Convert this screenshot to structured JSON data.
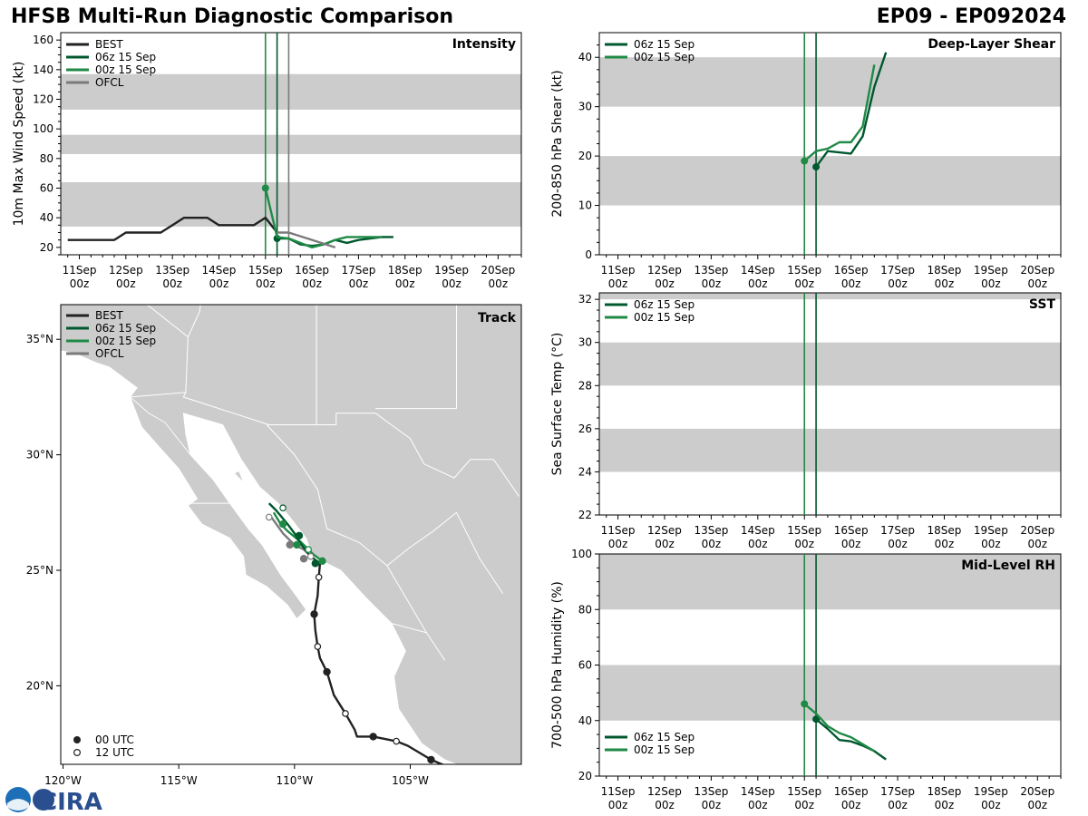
{
  "header": {
    "title": "HFSB Multi-Run Diagnostic Comparison",
    "storm_id": "EP09 - EP092024"
  },
  "logo": {
    "text": "CIRA"
  },
  "colors": {
    "best": "#222222",
    "run06": "#00582f",
    "run00": "#1f8a45",
    "ofcl": "#7a7a7a",
    "band": "#cccccc",
    "land": "#cccccc",
    "water": "#ffffff"
  },
  "time_axis": {
    "ticks": [
      {
        "day": "11Sep",
        "hour": "00z"
      },
      {
        "day": "12Sep",
        "hour": "00z"
      },
      {
        "day": "13Sep",
        "hour": "00z"
      },
      {
        "day": "14Sep",
        "hour": "00z"
      },
      {
        "day": "15Sep",
        "hour": "00z"
      },
      {
        "day": "16Sep",
        "hour": "00z"
      },
      {
        "day": "17Sep",
        "hour": "00z"
      },
      {
        "day": "18Sep",
        "hour": "00z"
      },
      {
        "day": "19Sep",
        "hour": "00z"
      },
      {
        "day": "20Sep",
        "hour": "00z"
      }
    ]
  },
  "chart_data": [
    {
      "id": "intensity",
      "type": "line",
      "title": "Intensity",
      "ylabel": "10m Max Wind Speed (kt)",
      "xlim": [
        -0.4,
        9.5
      ],
      "ylim": [
        15,
        165
      ],
      "yticks": [
        20,
        40,
        60,
        80,
        100,
        120,
        140,
        160
      ],
      "bands": [
        [
          34,
          64
        ],
        [
          83,
          96
        ],
        [
          113,
          137
        ]
      ],
      "vlines": [
        {
          "x": 4.0,
          "series": "run00"
        },
        {
          "x": 4.25,
          "series": "run06"
        },
        {
          "x": 4.5,
          "series": "ofcl"
        }
      ],
      "legend": [
        "BEST",
        "06z 15 Sep",
        "00z 15 Sep",
        "OFCL"
      ],
      "series": [
        {
          "key": "best",
          "name": "BEST",
          "x": [
            -0.25,
            0,
            0.25,
            0.5,
            0.75,
            1,
            1.25,
            1.5,
            1.75,
            2,
            2.25,
            2.5,
            2.75,
            3,
            3.25,
            3.5,
            3.75,
            4,
            4.25
          ],
          "y": [
            25,
            25,
            25,
            25,
            25,
            30,
            30,
            30,
            30,
            35,
            40,
            40,
            40,
            35,
            35,
            35,
            35,
            40,
            30
          ],
          "marker": null
        },
        {
          "key": "run06",
          "name": "06z 15 Sep",
          "x": [
            4.25,
            4.5,
            4.75,
            5,
            5.25,
            5.5,
            5.75,
            6,
            6.25,
            6.5,
            6.75
          ],
          "y": [
            26,
            26,
            22,
            21,
            22,
            25,
            23,
            25,
            26,
            27,
            27
          ],
          "marker": 0
        },
        {
          "key": "run00",
          "name": "00z 15 Sep",
          "x": [
            4,
            4.25,
            4.5,
            4.75,
            5,
            5.25,
            5.5,
            5.75,
            6,
            6.25,
            6.5
          ],
          "y": [
            60,
            27,
            26,
            23,
            20,
            22,
            25,
            27,
            27,
            27,
            27
          ],
          "marker": 0
        },
        {
          "key": "ofcl",
          "name": "OFCL",
          "x": [
            4.25,
            4.5,
            5,
            5.5
          ],
          "y": [
            30,
            30,
            25,
            20
          ],
          "marker": null
        }
      ]
    },
    {
      "id": "shear",
      "type": "line",
      "title": "Deep-Layer Shear",
      "ylabel": "200-850 hPa Shear (kt)",
      "xlim": [
        -0.4,
        9.5
      ],
      "ylim": [
        0,
        45
      ],
      "yticks": [
        0,
        10,
        20,
        30,
        40
      ],
      "bands": [
        [
          10,
          20
        ],
        [
          30,
          40
        ]
      ],
      "vlines": [
        {
          "x": 4.0,
          "series": "run00"
        },
        {
          "x": 4.25,
          "series": "run06"
        }
      ],
      "legend": [
        "06z 15 Sep",
        "00z 15 Sep"
      ],
      "series": [
        {
          "key": "run06",
          "name": "06z 15 Sep",
          "x": [
            4.25,
            4.5,
            5,
            5.25,
            5.5,
            5.75
          ],
          "y": [
            17.8,
            21,
            20.5,
            24,
            34,
            41
          ],
          "marker": 0
        },
        {
          "key": "run00",
          "name": "00z 15 Sep",
          "x": [
            4,
            4.25,
            4.5,
            4.75,
            5,
            5.25,
            5.5
          ],
          "y": [
            19,
            21,
            21.5,
            22.8,
            22.8,
            26,
            38.5
          ],
          "marker": 0
        }
      ]
    },
    {
      "id": "sst",
      "type": "line",
      "title": "SST",
      "ylabel": "Sea Surface Temp (°C)",
      "xlim": [
        -0.4,
        9.5
      ],
      "ylim": [
        22,
        32.3
      ],
      "yticks": [
        22,
        24,
        26,
        28,
        30,
        32
      ],
      "bands": [
        [
          24,
          26
        ],
        [
          28,
          30
        ],
        [
          32,
          34
        ]
      ],
      "vlines": [
        {
          "x": 4.0,
          "series": "run00"
        },
        {
          "x": 4.25,
          "series": "run06"
        }
      ],
      "legend": [
        "06z 15 Sep",
        "00z 15 Sep"
      ],
      "series": []
    },
    {
      "id": "rh",
      "type": "line",
      "title": "Mid-Level RH",
      "ylabel": "700-500 hPa Humidity (%)",
      "xlim": [
        -0.4,
        9.5
      ],
      "ylim": [
        20,
        100
      ],
      "yticks": [
        20,
        40,
        60,
        80,
        100
      ],
      "bands": [
        [
          40,
          60
        ],
        [
          80,
          100
        ]
      ],
      "vlines": [
        {
          "x": 4.0,
          "series": "run00"
        },
        {
          "x": 4.25,
          "series": "run06"
        }
      ],
      "legend": [
        "06z 15 Sep",
        "00z 15 Sep"
      ],
      "series": [
        {
          "key": "run06",
          "name": "06z 15 Sep",
          "x": [
            4.25,
            4.5,
            4.75,
            5,
            5.25,
            5.5,
            5.75
          ],
          "y": [
            40.5,
            37,
            33,
            32.5,
            31,
            29,
            26
          ],
          "marker": 0
        },
        {
          "key": "run00",
          "name": "00z 15 Sep",
          "x": [
            4,
            4.25,
            4.5,
            4.75,
            5,
            5.25,
            5.5
          ],
          "y": [
            46,
            42.5,
            38,
            35.5,
            34,
            31.5,
            29
          ],
          "marker": 0
        }
      ]
    },
    {
      "id": "track",
      "type": "scatter",
      "title": "Track",
      "xlim": [
        -120.1,
        -100.2
      ],
      "ylim": [
        16.6,
        36.5
      ],
      "xticks": [
        {
          "v": -120,
          "label": "120°W"
        },
        {
          "v": -115,
          "label": "115°W"
        },
        {
          "v": -110,
          "label": "110°W"
        },
        {
          "v": -105,
          "label": "105°W"
        }
      ],
      "yticks": [
        {
          "v": 20,
          "label": "20°N"
        },
        {
          "v": 25,
          "label": "25°N"
        },
        {
          "v": 30,
          "label": "30°N"
        },
        {
          "v": 35,
          "label": "35°N"
        }
      ],
      "legend": [
        "BEST",
        "06z 15 Sep",
        "00z 15 Sep",
        "OFCL"
      ],
      "marker_legend": [
        "00 UTC",
        "12 UTC"
      ],
      "series": [
        {
          "key": "best",
          "name": "BEST",
          "lon": [
            -103.4,
            -104.1,
            -105.1,
            -105.6,
            -106.6,
            -107.3,
            -107.4,
            -107.8,
            -108.3,
            -108.6,
            -108.9,
            -109.0,
            -109.1,
            -109.15,
            -109.0,
            -108.95,
            -108.9
          ],
          "lat": [
            16.5,
            16.8,
            17.4,
            17.6,
            17.8,
            17.8,
            18.1,
            18.8,
            19.6,
            20.6,
            21.2,
            21.7,
            22.4,
            23.1,
            23.9,
            24.7,
            25.3
          ],
          "points": [
            {
              "lon": -104.1,
              "lat": 16.8,
              "utc": "00"
            },
            {
              "lon": -105.6,
              "lat": 17.6,
              "utc": "12"
            },
            {
              "lon": -106.6,
              "lat": 17.8,
              "utc": "00"
            },
            {
              "lon": -107.8,
              "lat": 18.8,
              "utc": "12"
            },
            {
              "lon": -108.6,
              "lat": 20.6,
              "utc": "00"
            },
            {
              "lon": -109.0,
              "lat": 21.7,
              "utc": "12"
            },
            {
              "lon": -109.15,
              "lat": 23.1,
              "utc": "00"
            },
            {
              "lon": -108.95,
              "lat": 24.7,
              "utc": "12"
            }
          ]
        },
        {
          "key": "run06",
          "name": "06z 15 Sep",
          "lon": [
            -108.9,
            -109.3,
            -109.7,
            -110.0,
            -110.3,
            -110.8,
            -111.1
          ],
          "lat": [
            25.3,
            25.6,
            26.1,
            26.6,
            27.0,
            27.6,
            27.9
          ],
          "points": [
            {
              "lon": -109.1,
              "lat": 25.3,
              "utc": "00"
            },
            {
              "lon": -109.8,
              "lat": 26.5,
              "utc": "00"
            },
            {
              "lon": -110.5,
              "lat": 27.7,
              "utc": "12"
            }
          ]
        },
        {
          "key": "run00",
          "name": "00z 15 Sep",
          "lon": [
            -108.8,
            -109.2,
            -109.7,
            -110.3,
            -110.6,
            -110.9
          ],
          "lat": [
            25.4,
            25.7,
            26.2,
            26.7,
            27.0,
            27.5
          ],
          "points": [
            {
              "lon": -108.8,
              "lat": 25.4,
              "utc": "00"
            },
            {
              "lon": -109.4,
              "lat": 25.9,
              "utc": "12"
            },
            {
              "lon": -109.9,
              "lat": 26.1,
              "utc": "00"
            },
            {
              "lon": -110.5,
              "lat": 27.0,
              "utc": "00"
            }
          ]
        },
        {
          "key": "ofcl",
          "name": "OFCL",
          "lon": [
            -109.2,
            -109.6,
            -110.0,
            -110.5,
            -111.0
          ],
          "lat": [
            25.5,
            25.9,
            26.1,
            26.6,
            27.3
          ],
          "points": [
            {
              "lon": -109.3,
              "lat": 25.6,
              "utc": "12"
            },
            {
              "lon": -109.6,
              "lat": 25.5,
              "utc": "00"
            },
            {
              "lon": -110.2,
              "lat": 26.1,
              "utc": "00"
            },
            {
              "lon": -111.1,
              "lat": 27.3,
              "utc": "12"
            }
          ]
        }
      ]
    }
  ]
}
